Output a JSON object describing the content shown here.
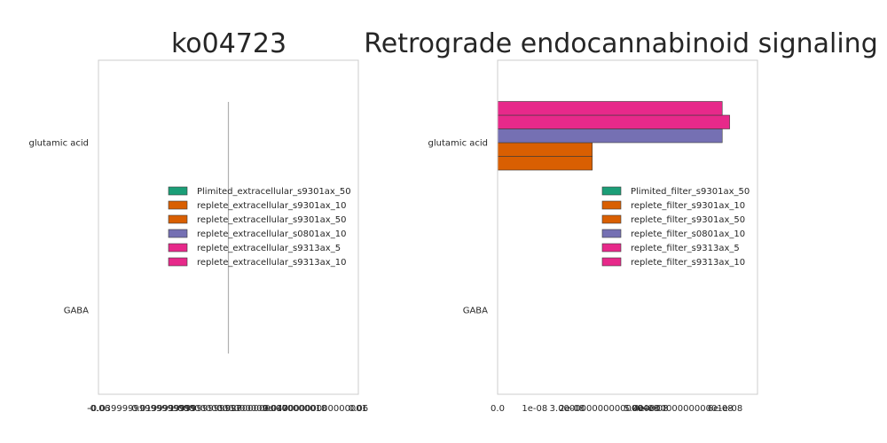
{
  "colors": {
    "green": "#1b9e77",
    "orange": "#d95f02",
    "purple": "#7570b3",
    "pink": "#e7298a",
    "frame": "#cccccc",
    "zero_line": "#b0b0b0"
  },
  "chart_data": [
    {
      "type": "bar",
      "orientation": "horizontal",
      "title": "ko04723",
      "categories": [
        "glutamic acid",
        "GABA"
      ],
      "xlim": [
        -0.06,
        0.06
      ],
      "xticks": [
        -0.06,
        -0.04,
        -0.02,
        0.0,
        0.02,
        0.04,
        0.06
      ],
      "xtick_labels": [
        "-0.06",
        "-0.03999999999999999",
        "-0.019999999999999997",
        "1.0000000000000009e-17",
        "0.020000000000000018",
        "0.04000000000000001",
        "0.06"
      ],
      "legend_position": "center-right",
      "series": [
        {
          "name": "Plimited_extracellular_s9301ax_50",
          "color": "#1b9e77",
          "values": [
            0,
            0
          ]
        },
        {
          "name": "replete_extracellular_s9301ax_10",
          "color": "#d95f02",
          "values": [
            0,
            0
          ]
        },
        {
          "name": "replete_extracellular_s9301ax_50",
          "color": "#d95f02",
          "values": [
            0,
            0
          ]
        },
        {
          "name": "replete_extracellular_s0801ax_10",
          "color": "#7570b3",
          "values": [
            0,
            0
          ]
        },
        {
          "name": "replete_extracellular_s9313ax_5",
          "color": "#e7298a",
          "values": [
            0,
            0
          ]
        },
        {
          "name": "replete_extracellular_s9313ax_10",
          "color": "#e7298a",
          "values": [
            0,
            0
          ]
        }
      ]
    },
    {
      "type": "bar",
      "orientation": "horizontal",
      "title": "Retrograde endocannabinoid signaling",
      "categories": [
        "glutamic acid",
        "GABA"
      ],
      "xlim": [
        0,
        7e-08
      ],
      "xticks": [
        0,
        1e-08,
        2e-08,
        4e-08,
        6e-08
      ],
      "xtick_labels": [
        "0.0",
        "1e-08",
        "2e-08",
        "4e-08",
        "6e-08"
      ],
      "xtick_overlays": [
        {
          "x": 3e-08,
          "label": "3.0000000000000004e-08"
        },
        {
          "x": 5e-08,
          "label": "5.0000000000000001e-08"
        }
      ],
      "legend_position": "center-right",
      "series": [
        {
          "name": "Plimited_filter_s9301ax_50",
          "color": "#1b9e77",
          "values": [
            0,
            0
          ]
        },
        {
          "name": "replete_filter_s9301ax_10",
          "color": "#d95f02",
          "values": [
            2.55e-08,
            0
          ]
        },
        {
          "name": "replete_filter_s9301ax_50",
          "color": "#d95f02",
          "values": [
            2.55e-08,
            0
          ]
        },
        {
          "name": "replete_filter_s0801ax_10",
          "color": "#7570b3",
          "values": [
            6.05e-08,
            0
          ]
        },
        {
          "name": "replete_filter_s9313ax_5",
          "color": "#e7298a",
          "values": [
            6.25e-08,
            0
          ]
        },
        {
          "name": "replete_filter_s9313ax_10",
          "color": "#e7298a",
          "values": [
            6.05e-08,
            0
          ]
        }
      ]
    }
  ]
}
